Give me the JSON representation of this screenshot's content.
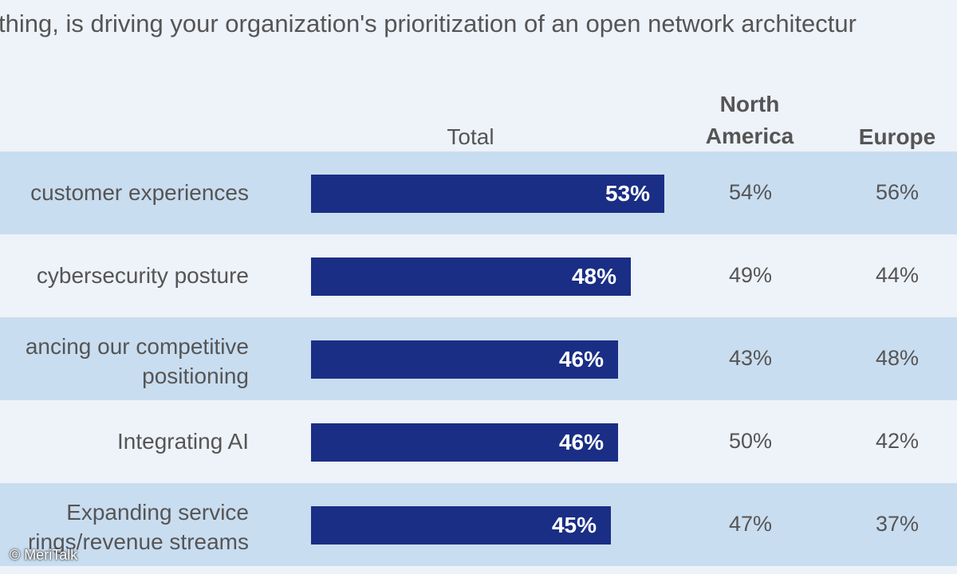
{
  "title": "thing, is driving your organization's prioritization of an open network architectur",
  "credit": "© MeriTalk",
  "colors": {
    "bar": "#1a2e85",
    "band": "#c9ddf0",
    "background": "#eef2f9"
  },
  "chart_data": {
    "type": "table",
    "columns": [
      "Total",
      "North America",
      "Europe"
    ],
    "column_headers": {
      "total": "Total",
      "na_line1": "North",
      "na_line2": "America",
      "europe": "Europe"
    },
    "xlim": [
      0,
      100
    ],
    "rows": [
      {
        "label": [
          "customer experiences"
        ],
        "total": 53,
        "total_label": "53%",
        "na": "54%",
        "europe": "56%"
      },
      {
        "label": [
          "cybersecurity posture"
        ],
        "total": 48,
        "total_label": "48%",
        "na": "49%",
        "europe": "44%"
      },
      {
        "label": [
          "ancing our competitive",
          "positioning"
        ],
        "total": 46,
        "total_label": "46%",
        "na": "43%",
        "europe": "48%"
      },
      {
        "label": [
          "Integrating AI"
        ],
        "total": 46,
        "total_label": "46%",
        "na": "50%",
        "europe": "42%"
      },
      {
        "label": [
          "Expanding service",
          "rings/revenue streams"
        ],
        "total": 45,
        "total_label": "45%",
        "na": "47%",
        "europe": "37%"
      }
    ]
  }
}
